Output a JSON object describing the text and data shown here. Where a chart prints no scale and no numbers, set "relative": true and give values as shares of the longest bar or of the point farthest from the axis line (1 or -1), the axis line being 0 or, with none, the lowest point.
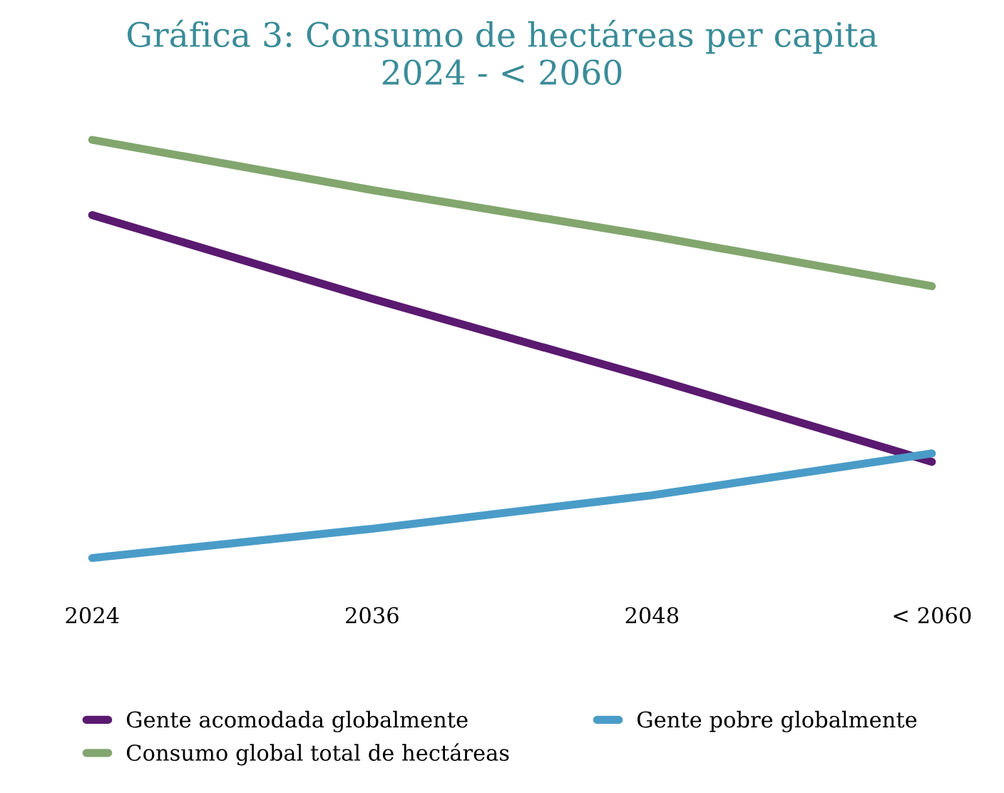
{
  "chart_data": {
    "type": "line",
    "title": "Gráfica 3: Consumo de hectáreas per capita\n2024 - < 2060",
    "categories": [
      "2024",
      "2036",
      "2048",
      "< 2060"
    ],
    "relative": true,
    "legend": "bottom",
    "series": [
      {
        "name": "Gente acomodada globalmente",
        "color": "#5a1a70",
        "values": [
          0.82,
          0.62,
          0.43,
          0.23
        ]
      },
      {
        "name": "Consumo global total de hectáreas",
        "color": "#82a66e",
        "values": [
          1,
          0.88,
          0.77,
          0.65
        ]
      },
      {
        "name": "Gente pobre globalmente",
        "color": "#4a9cc8",
        "values": [
          0,
          0.07,
          0.15,
          0.25
        ]
      }
    ]
  }
}
